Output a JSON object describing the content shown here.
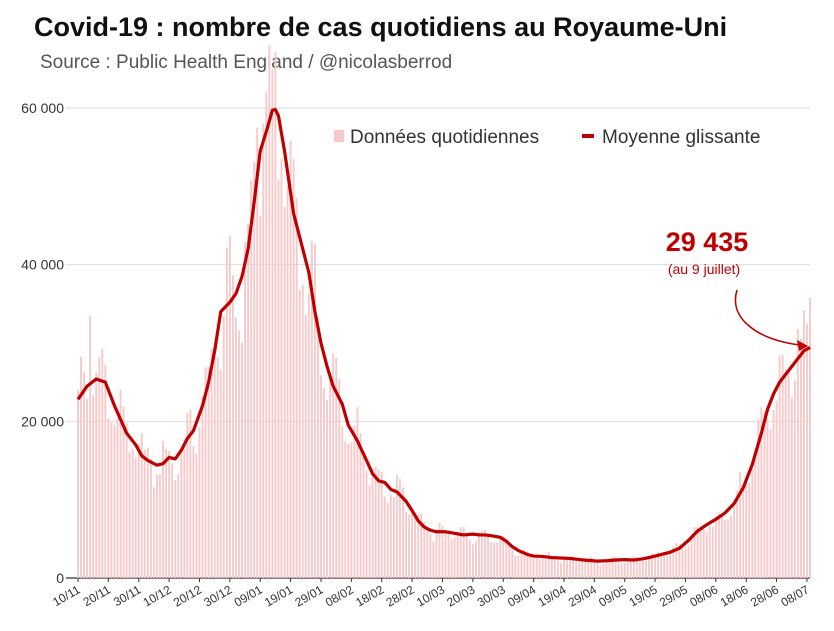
{
  "title": "Covid-19 : nombre de cas quotidiens au Royaume-Uni",
  "subtitle": "Source : Public Health England / @nicolasberrod",
  "chart_data": {
    "type": "bar+line",
    "title": "Covid-19 : nombre de cas quotidiens au Royaume-Uni",
    "ylim": [
      0,
      60000
    ],
    "y_ticks": [
      0,
      20000,
      40000,
      60000
    ],
    "y_tick_labels": [
      "0",
      "20 000",
      "40 000",
      "60 000"
    ],
    "x_tick_labels": [
      "10/11",
      "20/11",
      "30/11",
      "10/12",
      "20/12",
      "30/12",
      "09/01",
      "19/01",
      "29/01",
      "08/02",
      "18/02",
      "28/02",
      "10/03",
      "20/03",
      "30/03",
      "09/04",
      "19/04",
      "29/04",
      "09/05",
      "19/05",
      "29/05",
      "08/06",
      "18/06",
      "28/06",
      "08/07"
    ],
    "n_days": 242,
    "legend": {
      "bars": "Données quotidiennes",
      "line": "Moyenne glissante",
      "position": "top-right"
    },
    "annotation": {
      "value": "29 435",
      "note": "(au 9 juillet)"
    },
    "rolling_average_knots": [
      [
        0,
        22800
      ],
      [
        3,
        24500
      ],
      [
        6,
        25400
      ],
      [
        9,
        25000
      ],
      [
        12,
        22000
      ],
      [
        16,
        18500
      ],
      [
        19,
        17000
      ],
      [
        21,
        15600
      ],
      [
        23,
        15000
      ],
      [
        26,
        14400
      ],
      [
        28,
        14600
      ],
      [
        30,
        15400
      ],
      [
        32,
        15200
      ],
      [
        34,
        16300
      ],
      [
        36,
        17800
      ],
      [
        38,
        18800
      ],
      [
        41,
        22000
      ],
      [
        43,
        25000
      ],
      [
        45,
        29000
      ],
      [
        47,
        34000
      ],
      [
        50,
        35200
      ],
      [
        52,
        36300
      ],
      [
        54,
        38500
      ],
      [
        56,
        42000
      ],
      [
        58,
        48000
      ],
      [
        60,
        54500
      ],
      [
        62,
        57000
      ],
      [
        64,
        59700
      ],
      [
        65,
        59800
      ],
      [
        66,
        59000
      ],
      [
        68,
        54500
      ],
      [
        71,
        46500
      ],
      [
        74,
        42000
      ],
      [
        76,
        39000
      ],
      [
        78,
        34000
      ],
      [
        80,
        30000
      ],
      [
        82,
        27000
      ],
      [
        84,
        24500
      ],
      [
        87,
        22200
      ],
      [
        89,
        19500
      ],
      [
        92,
        17500
      ],
      [
        95,
        15000
      ],
      [
        97,
        13300
      ],
      [
        99,
        12400
      ],
      [
        101,
        12200
      ],
      [
        103,
        11300
      ],
      [
        105,
        11000
      ],
      [
        108,
        9800
      ],
      [
        110,
        8600
      ],
      [
        112,
        7300
      ],
      [
        114,
        6500
      ],
      [
        116,
        6100
      ],
      [
        118,
        5900
      ],
      [
        121,
        5900
      ],
      [
        124,
        5700
      ],
      [
        127,
        5500
      ],
      [
        130,
        5600
      ],
      [
        132,
        5500
      ],
      [
        134,
        5500
      ],
      [
        136,
        5400
      ],
      [
        139,
        5200
      ],
      [
        141,
        4700
      ],
      [
        143,
        4000
      ],
      [
        145,
        3500
      ],
      [
        148,
        3000
      ],
      [
        150,
        2800
      ],
      [
        153,
        2750
      ],
      [
        156,
        2600
      ],
      [
        159,
        2550
      ],
      [
        162,
        2500
      ],
      [
        165,
        2350
      ],
      [
        168,
        2250
      ],
      [
        171,
        2150
      ],
      [
        174,
        2200
      ],
      [
        177,
        2300
      ],
      [
        180,
        2350
      ],
      [
        183,
        2300
      ],
      [
        186,
        2450
      ],
      [
        189,
        2700
      ],
      [
        192,
        3000
      ],
      [
        195,
        3300
      ],
      [
        198,
        3800
      ],
      [
        201,
        4800
      ],
      [
        204,
        6000
      ],
      [
        207,
        6800
      ],
      [
        210,
        7500
      ],
      [
        213,
        8300
      ],
      [
        216,
        9500
      ],
      [
        219,
        11500
      ],
      [
        222,
        14500
      ],
      [
        225,
        18500
      ],
      [
        227,
        21500
      ],
      [
        229,
        23500
      ],
      [
        231,
        25000
      ],
      [
        233,
        26000
      ],
      [
        235,
        27000
      ],
      [
        237,
        28000
      ],
      [
        239,
        29000
      ],
      [
        241,
        29435
      ]
    ],
    "daily_noise_amplitude": 0.18,
    "daily_notable_peaks": [
      [
        4,
        33500
      ],
      [
        59,
        57500
      ],
      [
        62,
        62000
      ],
      [
        63,
        68000
      ],
      [
        61,
        58000
      ],
      [
        237,
        31800
      ],
      [
        240,
        32500
      ],
      [
        241,
        35800
      ],
      [
        232,
        28500
      ]
    ]
  }
}
